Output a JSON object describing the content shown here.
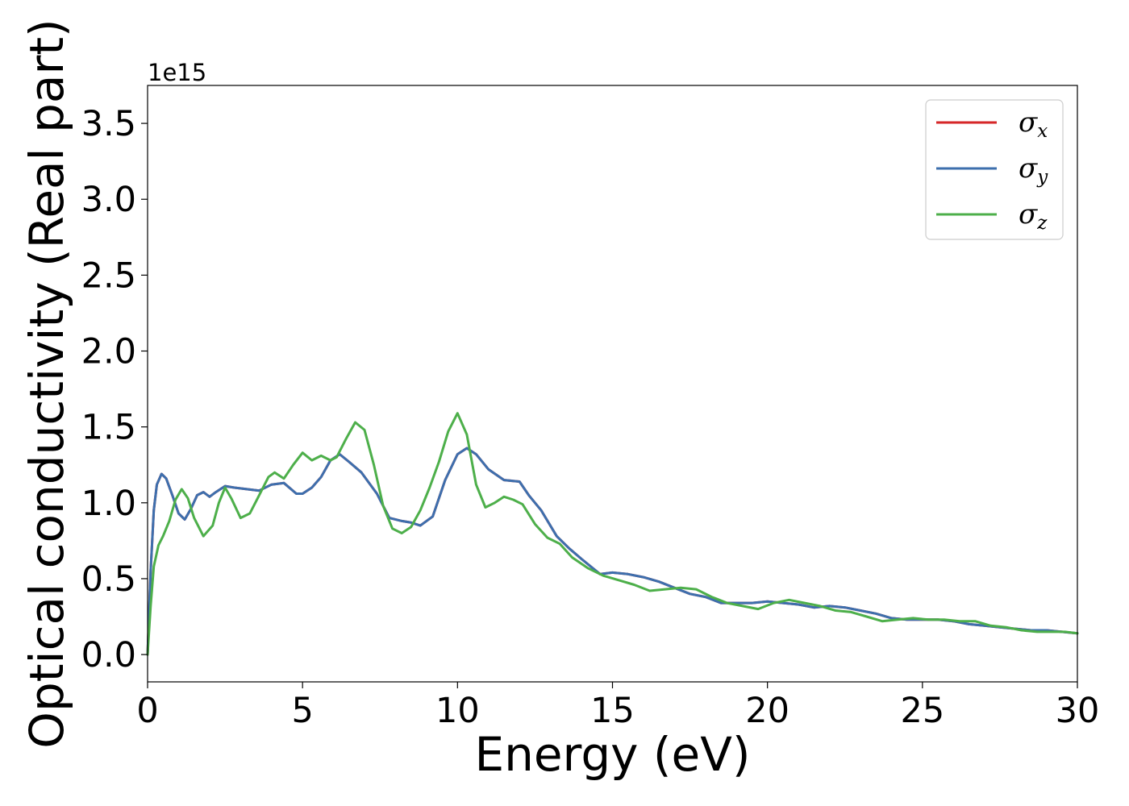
{
  "chart_data": {
    "type": "line",
    "title": "",
    "xlabel": "Energy (eV)",
    "ylabel": "Optical conductivity (Real part)",
    "y_offset_label": "1e15",
    "xlim": [
      0,
      30
    ],
    "ylim": [
      -0.18,
      3.75
    ],
    "xticks": [
      0,
      5,
      10,
      15,
      20,
      25,
      30
    ],
    "xtick_labels": [
      "0",
      "5",
      "10",
      "15",
      "20",
      "25",
      "30"
    ],
    "yticks": [
      0.0,
      0.5,
      1.0,
      1.5,
      2.0,
      2.5,
      3.0,
      3.5
    ],
    "ytick_labels": [
      "0.0",
      "0.5",
      "1.0",
      "1.5",
      "2.0",
      "2.5",
      "3.0",
      "3.5"
    ],
    "grid": false,
    "legend_position": "top-right",
    "series": [
      {
        "name": "σx",
        "legend_symbol": "σ",
        "legend_subscript": "x",
        "color": "#d62728",
        "x": [
          0,
          0.1,
          0.2,
          0.3,
          0.45,
          0.6,
          0.8,
          1.0,
          1.2,
          1.4,
          1.6,
          1.8,
          2.0,
          2.2,
          2.5,
          2.8,
          3.2,
          3.6,
          4.0,
          4.4,
          4.8,
          5.0,
          5.3,
          5.6,
          5.9,
          6.2,
          6.5,
          6.9,
          7.4,
          7.8,
          8.2,
          8.5,
          8.8,
          9.2,
          9.6,
          10.0,
          10.3,
          10.6,
          11.0,
          11.5,
          12.0,
          12.3,
          12.7,
          13.2,
          13.6,
          14.0,
          14.6,
          15.0,
          15.5,
          16.0,
          16.5,
          17.0,
          17.5,
          18.0,
          18.5,
          19.0,
          19.5,
          20.0,
          20.5,
          21.0,
          21.5,
          22.0,
          22.5,
          23.0,
          23.5,
          24.0,
          24.5,
          25.0,
          25.5,
          26.0,
          26.5,
          27.0,
          27.5,
          28.0,
          28.5,
          29.0,
          29.5,
          30.0
        ],
        "y": [
          0.0,
          0.55,
          0.95,
          1.12,
          1.19,
          1.16,
          1.05,
          0.93,
          0.89,
          0.96,
          1.05,
          1.07,
          1.04,
          1.07,
          1.11,
          1.1,
          1.09,
          1.08,
          1.12,
          1.13,
          1.06,
          1.06,
          1.1,
          1.17,
          1.28,
          1.32,
          1.27,
          1.2,
          1.06,
          0.9,
          0.88,
          0.87,
          0.85,
          0.91,
          1.15,
          1.32,
          1.36,
          1.32,
          1.22,
          1.15,
          1.14,
          1.05,
          0.95,
          0.78,
          0.7,
          0.63,
          0.53,
          0.54,
          0.53,
          0.51,
          0.48,
          0.44,
          0.4,
          0.38,
          0.34,
          0.34,
          0.34,
          0.35,
          0.34,
          0.33,
          0.31,
          0.32,
          0.31,
          0.29,
          0.27,
          0.24,
          0.23,
          0.23,
          0.23,
          0.22,
          0.2,
          0.19,
          0.18,
          0.17,
          0.16,
          0.16,
          0.15,
          0.14
        ]
      },
      {
        "name": "σy",
        "legend_symbol": "σ",
        "legend_subscript": "y",
        "color": "#3d6fad",
        "x": [
          0,
          0.1,
          0.2,
          0.3,
          0.45,
          0.6,
          0.8,
          1.0,
          1.2,
          1.4,
          1.6,
          1.8,
          2.0,
          2.2,
          2.5,
          2.8,
          3.2,
          3.6,
          4.0,
          4.4,
          4.8,
          5.0,
          5.3,
          5.6,
          5.9,
          6.2,
          6.5,
          6.9,
          7.4,
          7.8,
          8.2,
          8.5,
          8.8,
          9.2,
          9.6,
          10.0,
          10.3,
          10.6,
          11.0,
          11.5,
          12.0,
          12.3,
          12.7,
          13.2,
          13.6,
          14.0,
          14.6,
          15.0,
          15.5,
          16.0,
          16.5,
          17.0,
          17.5,
          18.0,
          18.5,
          19.0,
          19.5,
          20.0,
          20.5,
          21.0,
          21.5,
          22.0,
          22.5,
          23.0,
          23.5,
          24.0,
          24.5,
          25.0,
          25.5,
          26.0,
          26.5,
          27.0,
          27.5,
          28.0,
          28.5,
          29.0,
          29.5,
          30.0
        ],
        "y": [
          0.0,
          0.55,
          0.95,
          1.12,
          1.19,
          1.16,
          1.05,
          0.93,
          0.89,
          0.96,
          1.05,
          1.07,
          1.04,
          1.07,
          1.11,
          1.1,
          1.09,
          1.08,
          1.12,
          1.13,
          1.06,
          1.06,
          1.1,
          1.17,
          1.28,
          1.32,
          1.27,
          1.2,
          1.06,
          0.9,
          0.88,
          0.87,
          0.85,
          0.91,
          1.15,
          1.32,
          1.36,
          1.32,
          1.22,
          1.15,
          1.14,
          1.05,
          0.95,
          0.78,
          0.7,
          0.63,
          0.53,
          0.54,
          0.53,
          0.51,
          0.48,
          0.44,
          0.4,
          0.38,
          0.34,
          0.34,
          0.34,
          0.35,
          0.34,
          0.33,
          0.31,
          0.32,
          0.31,
          0.29,
          0.27,
          0.24,
          0.23,
          0.23,
          0.23,
          0.22,
          0.2,
          0.19,
          0.18,
          0.17,
          0.16,
          0.16,
          0.15,
          0.14
        ]
      },
      {
        "name": "σz",
        "legend_symbol": "σ",
        "legend_subscript": "z",
        "color": "#4daf4a",
        "x": [
          0,
          0.1,
          0.2,
          0.35,
          0.5,
          0.7,
          0.9,
          1.1,
          1.3,
          1.5,
          1.8,
          2.1,
          2.3,
          2.5,
          2.7,
          3.0,
          3.3,
          3.6,
          3.9,
          4.1,
          4.4,
          4.7,
          5.0,
          5.3,
          5.6,
          5.9,
          6.1,
          6.4,
          6.7,
          7.0,
          7.3,
          7.6,
          7.9,
          8.2,
          8.5,
          8.8,
          9.1,
          9.4,
          9.7,
          10.0,
          10.3,
          10.6,
          10.9,
          11.2,
          11.5,
          11.8,
          12.1,
          12.5,
          12.9,
          13.3,
          13.7,
          14.2,
          14.7,
          15.2,
          15.7,
          16.2,
          16.7,
          17.2,
          17.7,
          18.2,
          18.7,
          19.2,
          19.7,
          20.2,
          20.7,
          21.2,
          21.7,
          22.2,
          22.7,
          23.2,
          23.7,
          24.2,
          24.7,
          25.2,
          25.7,
          26.2,
          26.7,
          27.2,
          27.7,
          28.2,
          28.7,
          29.2,
          29.6,
          30.0
        ],
        "y": [
          0.0,
          0.32,
          0.58,
          0.72,
          0.78,
          0.88,
          1.02,
          1.09,
          1.03,
          0.9,
          0.78,
          0.85,
          1.0,
          1.1,
          1.03,
          0.9,
          0.93,
          1.05,
          1.17,
          1.2,
          1.16,
          1.25,
          1.33,
          1.28,
          1.31,
          1.28,
          1.3,
          1.42,
          1.53,
          1.48,
          1.25,
          0.98,
          0.83,
          0.8,
          0.84,
          0.95,
          1.1,
          1.27,
          1.47,
          1.59,
          1.45,
          1.12,
          0.97,
          1.0,
          1.04,
          1.02,
          0.99,
          0.86,
          0.77,
          0.73,
          0.64,
          0.57,
          0.52,
          0.49,
          0.46,
          0.42,
          0.43,
          0.44,
          0.43,
          0.38,
          0.34,
          0.32,
          0.3,
          0.34,
          0.36,
          0.34,
          0.32,
          0.29,
          0.28,
          0.25,
          0.22,
          0.23,
          0.24,
          0.23,
          0.23,
          0.22,
          0.22,
          0.19,
          0.18,
          0.16,
          0.15,
          0.15,
          0.15,
          0.14
        ]
      }
    ]
  }
}
